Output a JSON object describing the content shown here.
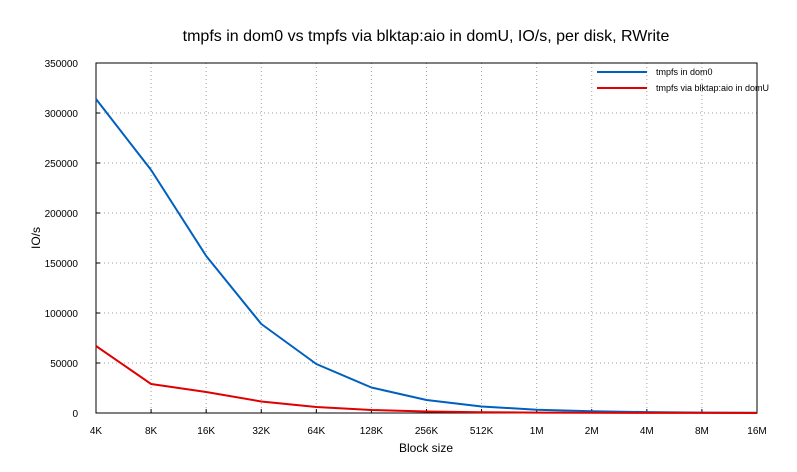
{
  "chart_data": {
    "type": "line",
    "title": "tmpfs in dom0 vs tmpfs via blktap:aio in domU, IO/s, per disk, RWrite",
    "xlabel": "Block size",
    "ylabel": "IO/s",
    "categories": [
      "4K",
      "8K",
      "16K",
      "32K",
      "64K",
      "128K",
      "256K",
      "512K",
      "1M",
      "2M",
      "4M",
      "8M",
      "16M"
    ],
    "yticks": [
      "0",
      "50000",
      "100000",
      "150000",
      "200000",
      "250000",
      "300000",
      "350000"
    ],
    "ylim": [
      0,
      350000
    ],
    "grid": true,
    "legend_position": "top-right",
    "series": [
      {
        "name": "tmpfs in dom0",
        "color": "#0060c0",
        "values": [
          314000,
          243000,
          157000,
          89000,
          49000,
          25500,
          13000,
          6500,
          3300,
          1700,
          850,
          430,
          220
        ]
      },
      {
        "name": "tmpfs via blktap:aio in domU",
        "color": "#e00000",
        "values": [
          67000,
          29000,
          21000,
          11500,
          6000,
          3000,
          1500,
          800,
          400,
          200,
          100,
          50,
          25
        ]
      }
    ]
  }
}
